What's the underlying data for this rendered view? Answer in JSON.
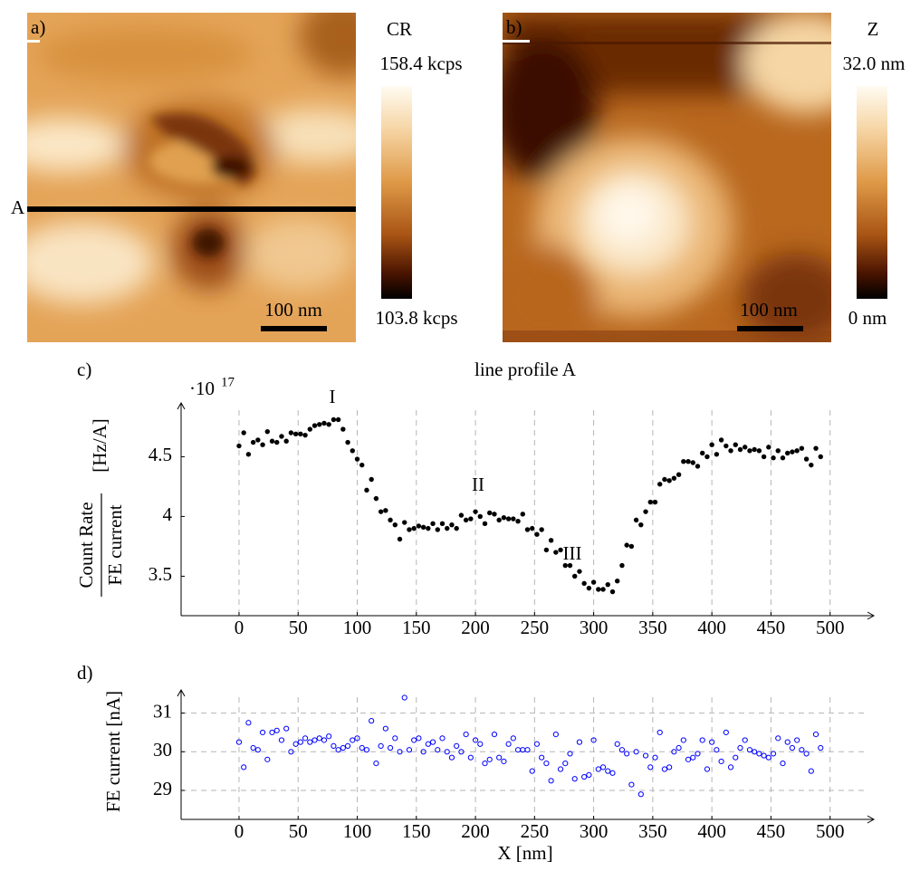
{
  "images": [
    {
      "label": "a)",
      "line_label": "A",
      "scale_bar": "100 nm",
      "colorbar": {
        "title": "CR",
        "max": "158.4 kcps",
        "min": "103.8 kcps"
      }
    },
    {
      "label": "b)",
      "scale_bar": "100 nm",
      "colorbar": {
        "title": "Z",
        "max": "32.0 nm",
        "min": "0 nm"
      }
    }
  ],
  "chart_data": [
    {
      "type": "scatter",
      "panel_label": "c)",
      "title": "line profile A",
      "y_label": {
        "numerator": "Count Rate",
        "denominator": "FE current",
        "unit": "[Hz/A]"
      },
      "y_multiplier": {
        "base": "·10",
        "exponent": "17"
      },
      "annotations": [
        "I",
        "II",
        "III"
      ],
      "xlim": [
        -49,
        537
      ],
      "ylim": [
        3.17,
        4.95
      ],
      "xticks": [
        0,
        50,
        100,
        150,
        200,
        250,
        300,
        350,
        400,
        450,
        500
      ],
      "yticks": [
        3.5,
        4,
        4.5
      ],
      "grid": "x",
      "series": [
        {
          "color": "#000000",
          "hollow": false,
          "x": [
            0,
            4,
            8,
            12,
            16,
            20,
            24,
            28,
            32,
            36,
            40,
            44,
            48,
            52,
            56,
            60,
            64,
            68,
            72,
            76,
            80,
            84,
            88,
            92,
            96,
            100,
            104,
            108,
            112,
            116,
            120,
            124,
            128,
            132,
            136,
            140,
            144,
            148,
            152,
            156,
            160,
            164,
            168,
            172,
            176,
            180,
            184,
            188,
            192,
            196,
            200,
            204,
            208,
            212,
            216,
            220,
            224,
            228,
            232,
            236,
            240,
            244,
            248,
            252,
            256,
            260,
            264,
            268,
            272,
            276,
            280,
            284,
            288,
            292,
            296,
            300,
            304,
            308,
            312,
            316,
            320,
            324,
            328,
            332,
            336,
            340,
            344,
            348,
            352,
            356,
            360,
            364,
            368,
            372,
            376,
            380,
            384,
            388,
            392,
            396,
            400,
            404,
            408,
            412,
            416,
            420,
            424,
            428,
            432,
            436,
            440,
            444,
            448,
            452,
            456,
            460,
            464,
            468,
            472,
            476,
            480,
            484,
            488,
            492
          ],
          "values": [
            4.59,
            4.7,
            4.52,
            4.62,
            4.64,
            4.6,
            4.71,
            4.63,
            4.62,
            4.67,
            4.63,
            4.7,
            4.69,
            4.69,
            4.68,
            4.73,
            4.76,
            4.77,
            4.78,
            4.77,
            4.81,
            4.81,
            4.73,
            4.62,
            4.55,
            4.48,
            4.43,
            4.22,
            4.31,
            4.15,
            4.04,
            4.05,
            3.97,
            3.93,
            3.81,
            3.95,
            3.89,
            3.9,
            3.92,
            3.91,
            3.9,
            3.94,
            3.89,
            3.94,
            3.9,
            3.93,
            3.9,
            4.01,
            3.97,
            3.98,
            4.04,
            4.0,
            3.94,
            4.03,
            4.02,
            3.97,
            3.99,
            3.98,
            3.98,
            3.96,
            4.02,
            3.89,
            3.9,
            3.85,
            3.89,
            3.72,
            3.8,
            3.7,
            3.72,
            3.59,
            3.59,
            3.5,
            3.54,
            3.44,
            3.4,
            3.45,
            3.39,
            3.39,
            3.43,
            3.37,
            3.46,
            3.59,
            3.76,
            3.75,
            3.97,
            3.93,
            4.04,
            4.12,
            4.12,
            4.27,
            4.31,
            4.3,
            4.32,
            4.35,
            4.46,
            4.46,
            4.45,
            4.42,
            4.53,
            4.5,
            4.6,
            4.52,
            4.64,
            4.59,
            4.55,
            4.6,
            4.56,
            4.58,
            4.55,
            4.56,
            4.55,
            4.5,
            4.58,
            4.49,
            4.55,
            4.49,
            4.53,
            4.54,
            4.55,
            4.57,
            4.48,
            4.43,
            4.57,
            4.5
          ]
        }
      ]
    },
    {
      "type": "scatter",
      "panel_label": "d)",
      "x_label": "X [nm]",
      "y_label": "FE current [nA]",
      "xlim": [
        -49,
        537
      ],
      "ylim": [
        28.25,
        31.6
      ],
      "xticks": [
        0,
        50,
        100,
        150,
        200,
        250,
        300,
        350,
        400,
        450,
        500
      ],
      "yticks": [
        29,
        30,
        31
      ],
      "grid": "both",
      "series": [
        {
          "color": "#0000ff",
          "hollow": true,
          "x": [
            0,
            4,
            8,
            12,
            16,
            20,
            24,
            28,
            32,
            36,
            40,
            44,
            48,
            52,
            56,
            60,
            64,
            68,
            72,
            76,
            80,
            84,
            88,
            92,
            96,
            100,
            104,
            108,
            112,
            116,
            120,
            124,
            128,
            132,
            136,
            140,
            144,
            148,
            152,
            156,
            160,
            164,
            168,
            172,
            176,
            180,
            184,
            188,
            192,
            196,
            200,
            204,
            208,
            212,
            216,
            220,
            224,
            228,
            232,
            236,
            240,
            244,
            248,
            252,
            256,
            260,
            264,
            268,
            272,
            276,
            280,
            284,
            288,
            292,
            296,
            300,
            304,
            308,
            312,
            316,
            320,
            324,
            328,
            332,
            336,
            340,
            344,
            348,
            352,
            356,
            360,
            364,
            368,
            372,
            376,
            380,
            384,
            388,
            392,
            396,
            400,
            404,
            408,
            412,
            416,
            420,
            424,
            428,
            432,
            436,
            440,
            444,
            448,
            452,
            456,
            460,
            464,
            468,
            472,
            476,
            480,
            484,
            488,
            492
          ],
          "values": [
            30.25,
            29.6,
            30.75,
            30.1,
            30.05,
            30.5,
            29.8,
            30.5,
            30.55,
            30.3,
            30.6,
            30.0,
            30.2,
            30.25,
            30.35,
            30.25,
            30.3,
            30.35,
            30.3,
            30.4,
            30.15,
            30.05,
            30.1,
            30.15,
            30.3,
            30.35,
            30.1,
            30.05,
            30.8,
            29.7,
            30.15,
            30.6,
            30.1,
            30.35,
            30.0,
            31.4,
            30.05,
            30.3,
            30.35,
            30.0,
            30.2,
            30.25,
            30.05,
            30.35,
            30.0,
            29.85,
            30.15,
            30.0,
            30.45,
            29.85,
            30.3,
            30.2,
            29.7,
            29.8,
            30.45,
            29.85,
            29.75,
            30.2,
            30.35,
            30.05,
            30.05,
            30.05,
            29.5,
            30.2,
            29.85,
            29.7,
            29.25,
            30.45,
            29.55,
            29.7,
            29.95,
            29.3,
            30.25,
            29.35,
            29.4,
            30.3,
            29.55,
            29.6,
            29.5,
            29.45,
            30.2,
            30.05,
            29.95,
            29.15,
            30.0,
            28.9,
            29.9,
            29.6,
            29.85,
            30.5,
            29.55,
            29.6,
            30.0,
            30.1,
            30.3,
            29.8,
            29.85,
            29.95,
            30.3,
            29.55,
            30.25,
            30.05,
            29.75,
            30.5,
            29.6,
            29.85,
            30.1,
            30.3,
            30.05,
            30.0,
            29.95,
            29.9,
            29.85,
            29.95,
            30.35,
            29.7,
            30.25,
            30.1,
            30.3,
            30.05,
            29.95,
            29.5,
            30.45,
            30.1
          ]
        }
      ]
    }
  ]
}
